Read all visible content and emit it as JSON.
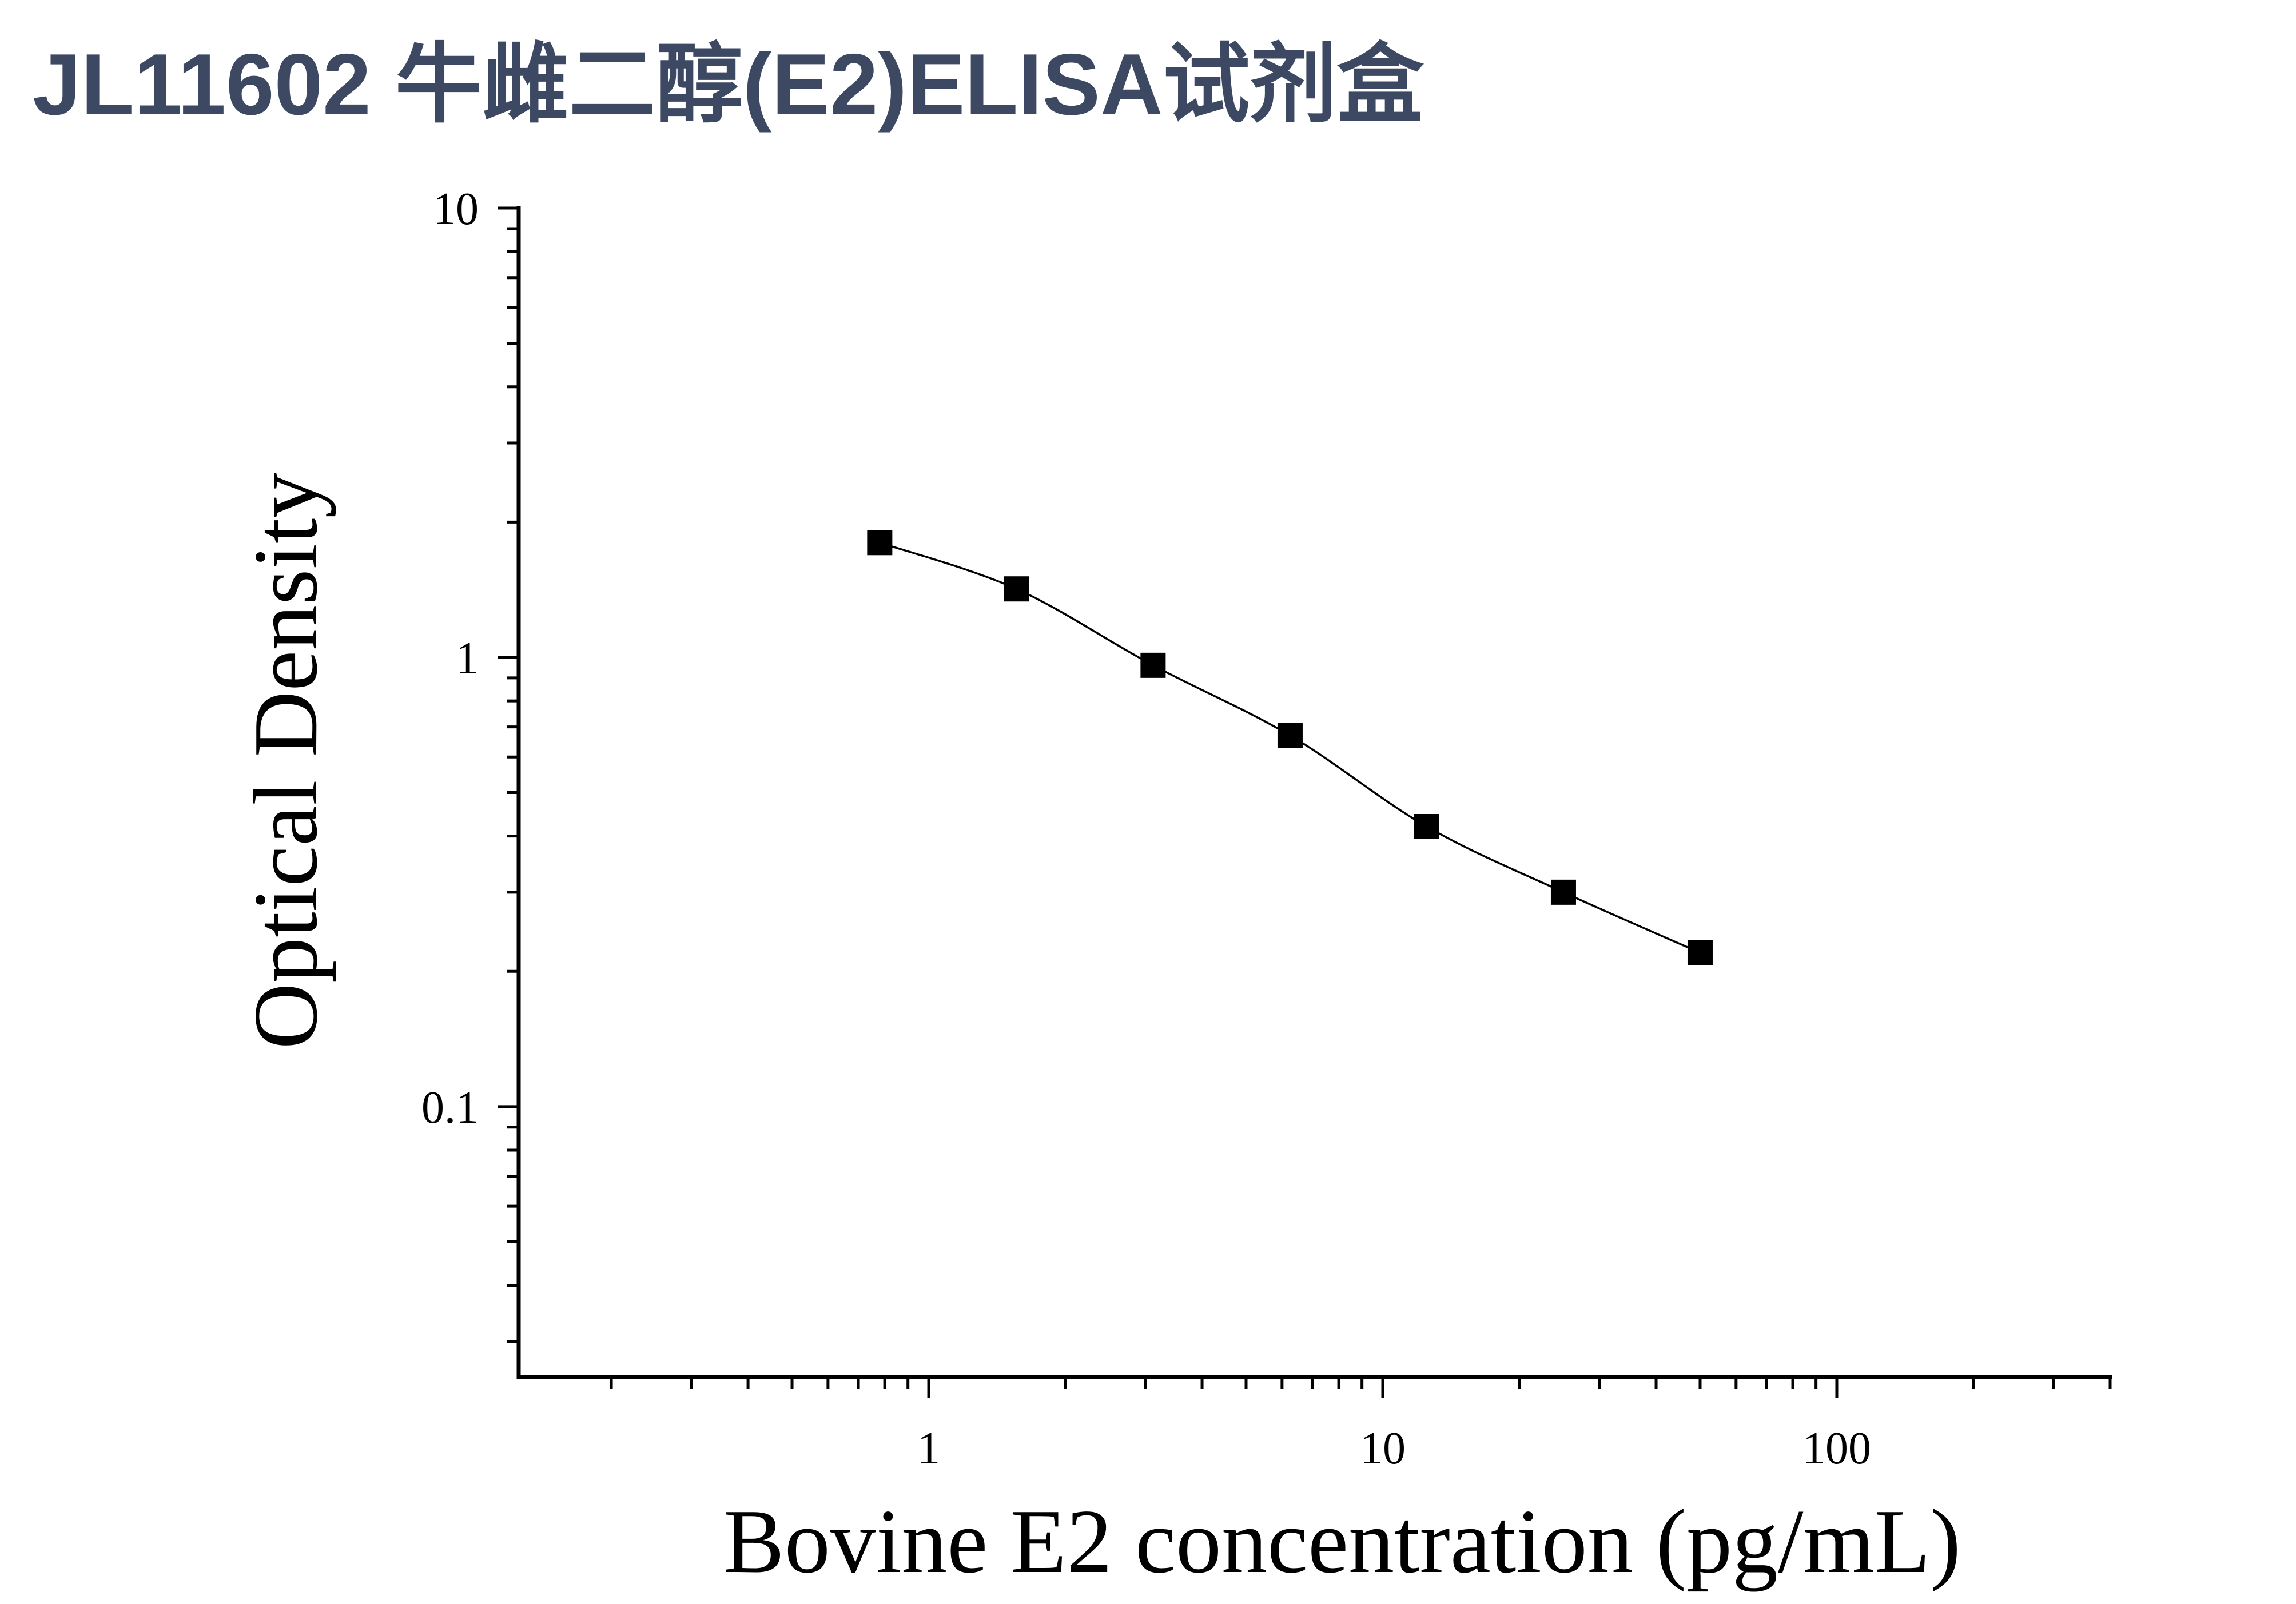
{
  "colors": {
    "title": "#3d4963",
    "axis": "#000000",
    "marker": "#000000",
    "background": "#ffffff"
  },
  "chart_data": {
    "type": "scatter",
    "title": "JL11602 牛雌二醇(E2)ELISA试剂盒",
    "xlabel": "Bovine E2 concentration (pg/mL)",
    "ylabel": "Optical Density",
    "xscale": "log",
    "yscale": "log",
    "xlim": [
      0.125,
      400
    ],
    "ylim": [
      0.025,
      10
    ],
    "x_ticks": [
      1,
      10,
      100
    ],
    "x_tick_labels": [
      "1",
      "10",
      "100"
    ],
    "y_ticks": [
      0.1,
      1,
      10
    ],
    "y_tick_labels": [
      "0.1",
      "1",
      "10"
    ],
    "grid": false,
    "legend": "none",
    "series": [
      {
        "x": [
          0.78,
          1.56,
          3.12,
          6.25,
          12.5,
          25,
          50
        ],
        "y": [
          1.8,
          1.42,
          0.96,
          0.67,
          0.42,
          0.3,
          0.22
        ],
        "marker": "square",
        "curve": "smooth"
      }
    ]
  }
}
